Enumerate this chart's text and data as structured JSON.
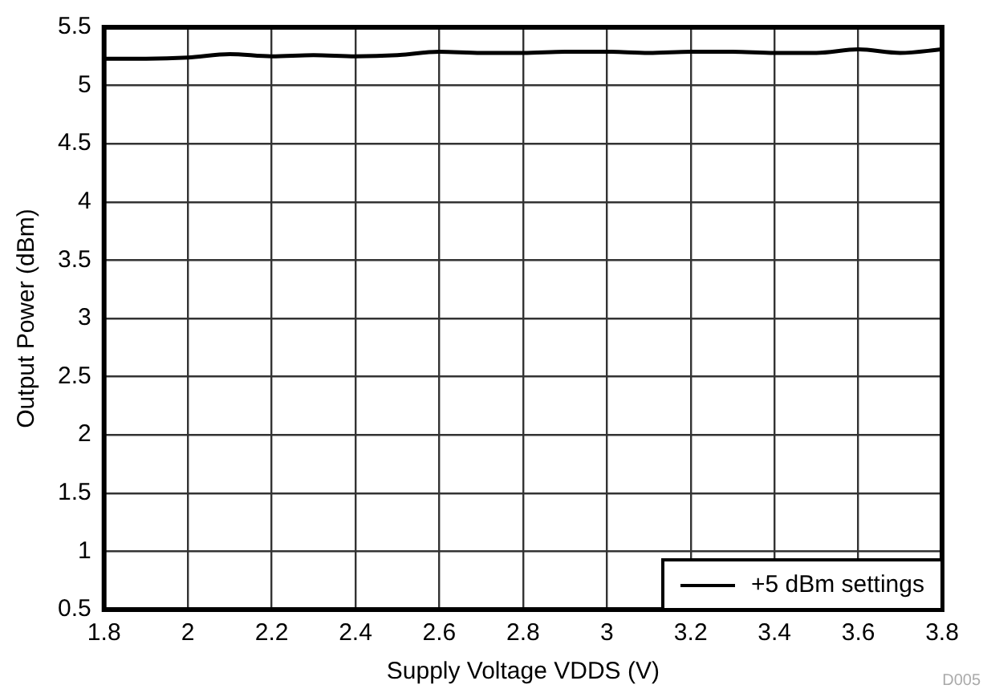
{
  "chart_data": {
    "type": "line",
    "xlabel": "Supply Voltage VDDS (V)",
    "ylabel": "Output Power (dBm)",
    "x": [
      1.8,
      1.9,
      2.0,
      2.1,
      2.2,
      2.3,
      2.4,
      2.5,
      2.6,
      2.7,
      2.8,
      2.9,
      3.0,
      3.1,
      3.2,
      3.3,
      3.4,
      3.5,
      3.6,
      3.7,
      3.8
    ],
    "series": [
      {
        "name": "+5 dBm settings",
        "color": "#000000",
        "values": [
          5.23,
          5.23,
          5.24,
          5.27,
          5.25,
          5.26,
          5.25,
          5.26,
          5.29,
          5.28,
          5.28,
          5.29,
          5.29,
          5.28,
          5.29,
          5.29,
          5.28,
          5.28,
          5.31,
          5.28,
          5.31
        ]
      }
    ],
    "xlim": [
      1.8,
      3.8
    ],
    "xticks": [
      1.8,
      2,
      2.2,
      2.4,
      2.6,
      2.8,
      3,
      3.2,
      3.4,
      3.6,
      3.8
    ],
    "ylim": [
      0.5,
      5.5
    ],
    "yticks": [
      0.5,
      1,
      1.5,
      2,
      2.5,
      3,
      3.5,
      4,
      4.5,
      5,
      5.5
    ],
    "grid": true,
    "legend": "bottom right",
    "marker": "none",
    "line_style": "solid",
    "annotations": [
      "D005"
    ]
  }
}
